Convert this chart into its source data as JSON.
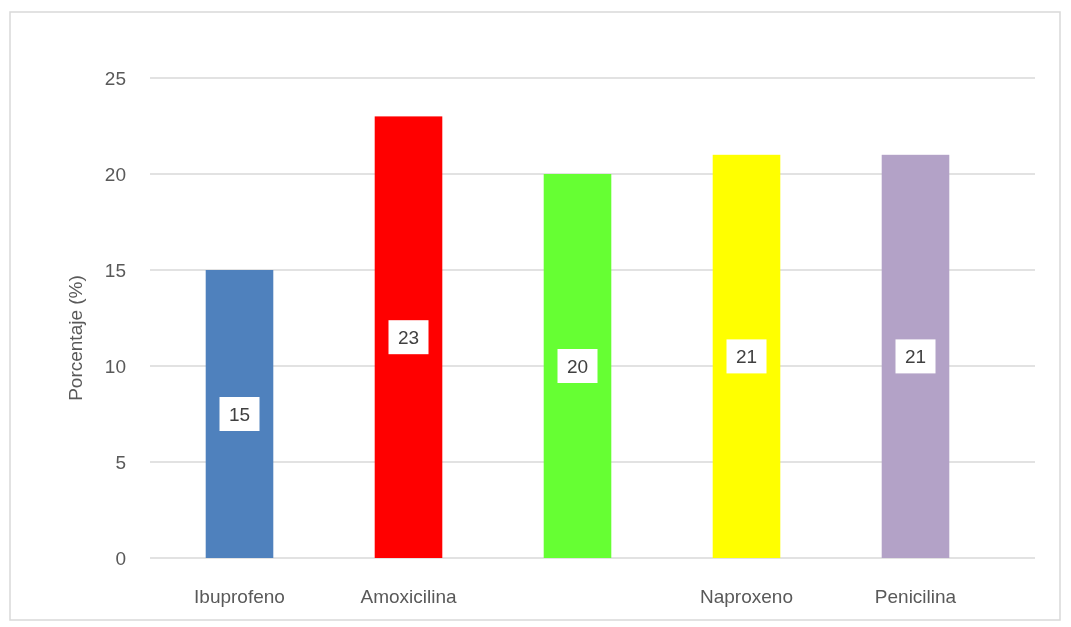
{
  "chart_data": {
    "type": "bar",
    "categories": [
      "Ibuprofeno",
      "Amoxicilina",
      null,
      "Naproxeno",
      "Penicilina"
    ],
    "values": [
      15,
      23,
      20,
      21,
      21
    ],
    "colors": [
      "#4f81bd",
      "#ff0000",
      "#66ff33",
      "#ffff00",
      "#b3a2c7"
    ],
    "ylabel": "Porcentaje (%)",
    "ylim": [
      0,
      25
    ],
    "yticks": [
      0,
      5,
      10,
      15,
      20,
      25
    ],
    "grid": "y",
    "data_labels": true
  }
}
